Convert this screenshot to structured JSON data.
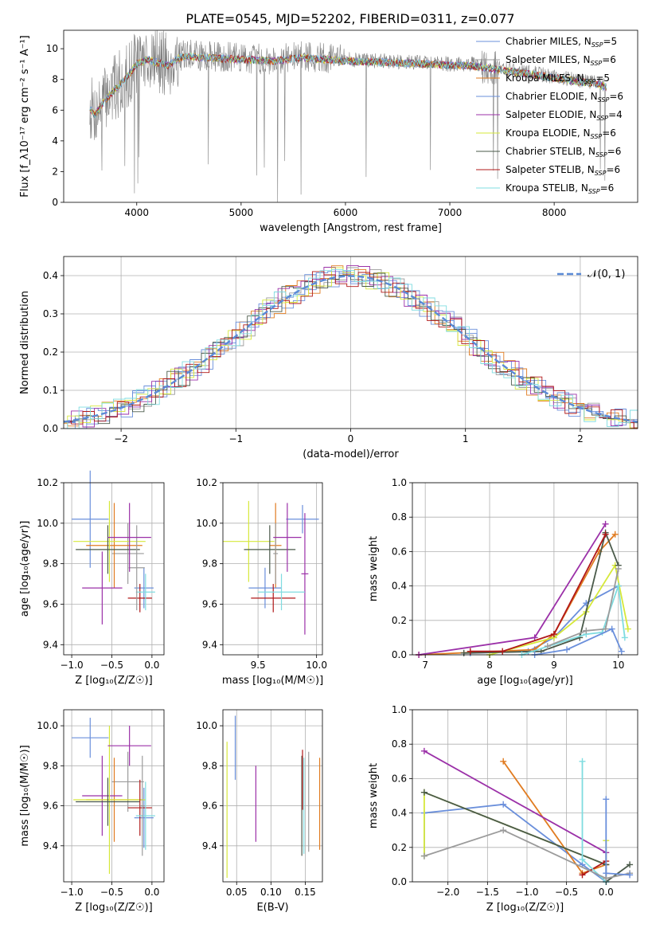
{
  "figure_title": "PLATE=0545, MJD=52202, FIBERID=0311, z=0.077",
  "models": [
    {
      "name": "Chabrier MILES",
      "nssp": "5",
      "color": "#6a8fdb"
    },
    {
      "name": "Salpeter MILES",
      "nssp": "6",
      "color": "#9b9b9b"
    },
    {
      "name": "Kroupa MILES",
      "nssp": "5",
      "color": "#e07b20"
    },
    {
      "name": "Chabrier ELODIE",
      "nssp": "6",
      "color": "#6a8fdb"
    },
    {
      "name": "Salpeter ELODIE",
      "nssp": "4",
      "color": "#9b30a8"
    },
    {
      "name": "Kroupa ELODIE",
      "nssp": "6",
      "color": "#d6e83a"
    },
    {
      "name": "Chabrier STELIB",
      "nssp": "6",
      "color": "#4a5a4a"
    },
    {
      "name": "Salpeter STELIB",
      "nssp": "6",
      "color": "#b01818"
    },
    {
      "name": "Kroupa STELIB",
      "nssp": "6",
      "color": "#7fdce0"
    }
  ],
  "chart_data": [
    {
      "id": "spectrum",
      "type": "line",
      "xlabel": "wavelength [Angstrom, rest frame]",
      "ylabel": "Flux [f_λ10⁻¹⁷ erg cm⁻² s⁻¹ A⁻¹]",
      "xlim": [
        3300,
        8800
      ],
      "ylim": [
        0,
        11.2
      ],
      "xticks": [
        "4000",
        "5000",
        "6000",
        "7000",
        "8000"
      ],
      "xtick_values": [
        4000,
        5000,
        6000,
        7000,
        8000
      ],
      "yticks": [
        "0",
        "2",
        "4",
        "6",
        "8",
        "10"
      ],
      "ytick_values": [
        0,
        2,
        4,
        6,
        8,
        10
      ],
      "continuum": {
        "x": [
          3550,
          3600,
          3700,
          3800,
          3900,
          4000,
          4100,
          4200,
          4300,
          4400,
          4500,
          4700,
          5000,
          5300,
          5600,
          6000,
          6400,
          6800,
          7000,
          7200,
          7400,
          7600,
          7800,
          8000,
          8200,
          8400,
          8500
        ],
        "y": [
          6.2,
          5.8,
          6.8,
          7.5,
          8.2,
          9.1,
          9.4,
          9.2,
          9.0,
          9.5,
          9.6,
          9.5,
          9.4,
          9.3,
          9.5,
          9.3,
          9.2,
          9.1,
          9.0,
          9.0,
          8.8,
          8.6,
          8.4,
          8.2,
          8.0,
          7.8,
          7.6
        ]
      }
    },
    {
      "id": "residuals",
      "type": "bar",
      "xlabel": "(data-model)/error",
      "ylabel": "Normed distribution",
      "xlim": [
        -2.5,
        2.5
      ],
      "ylim": [
        0,
        0.45
      ],
      "xticks": [
        "−2",
        "−1",
        "0",
        "1",
        "2"
      ],
      "xtick_values": [
        -2,
        -1,
        0,
        1,
        2
      ],
      "yticks": [
        "0.0",
        "0.1",
        "0.2",
        "0.3",
        "0.4"
      ],
      "ytick_values": [
        0,
        0.1,
        0.2,
        0.3,
        0.4
      ],
      "legend": "𝒩(0, 1)",
      "legend_color": "#5b8ad6",
      "bin_width": 0.1
    },
    {
      "id": "age-vs-Z",
      "type": "scatter",
      "xlabel": "Z [log₁₀(Z/Z☉)]",
      "ylabel": "age  [log₁₀(age/yr)]",
      "xlim": [
        -1.1,
        0.15
      ],
      "ylim": [
        9.35,
        10.2
      ],
      "xticks": [
        "−1.0",
        "−0.5",
        "0.0"
      ],
      "xtick_values": [
        -1,
        -0.5,
        0
      ],
      "yticks": [
        "9.4",
        "9.6",
        "9.8",
        "10.0",
        "10.2"
      ],
      "ytick_values": [
        9.4,
        9.6,
        9.8,
        10.0,
        10.2
      ],
      "points": [
        {
          "m": 0,
          "x": -0.77,
          "xerr": 0.23,
          "y": 10.02,
          "yerr": 0.24
        },
        {
          "m": 1,
          "x": -0.3,
          "xerr": 0.2,
          "y": 9.85,
          "yerr": 0.15
        },
        {
          "m": 2,
          "x": -0.47,
          "xerr": 0.35,
          "y": 9.89,
          "yerr": 0.21
        },
        {
          "m": 3,
          "x": -0.1,
          "xerr": 0.12,
          "y": 9.68,
          "yerr": 0.1
        },
        {
          "m": 4,
          "x": -0.62,
          "xerr": 0.25,
          "y": 9.68,
          "yerr": 0.18
        },
        {
          "m": 5,
          "x": -0.53,
          "xerr": 0.45,
          "y": 9.91,
          "yerr": 0.2
        },
        {
          "m": 6,
          "x": -0.55,
          "xerr": 0.4,
          "y": 9.87,
          "yerr": 0.12
        },
        {
          "m": 7,
          "x": -0.15,
          "xerr": 0.15,
          "y": 9.63,
          "yerr": 0.07
        },
        {
          "m": 8,
          "x": -0.08,
          "xerr": 0.12,
          "y": 9.66,
          "yerr": 0.09
        },
        {
          "m": 1,
          "x": -0.19,
          "xerr": 0.1,
          "y": 9.78,
          "yerr": 0.21
        },
        {
          "m": 4,
          "x": -0.28,
          "xerr": 0.27,
          "y": 9.93,
          "yerr": 0.17
        }
      ]
    },
    {
      "id": "age-vs-mass",
      "type": "scatter",
      "xlabel": "mass [log₁₀(M/M☉)]",
      "ylabel": "",
      "xlim": [
        9.2,
        10.05
      ],
      "ylim": [
        9.35,
        10.2
      ],
      "xticks": [
        "9.5",
        "10.0"
      ],
      "xtick_values": [
        9.5,
        10.0
      ],
      "yticks": [
        "9.4",
        "9.6",
        "9.8",
        "10.0",
        "10.2"
      ],
      "ytick_values": [
        9.4,
        9.6,
        9.8,
        10.0,
        10.2
      ],
      "points": [
        {
          "m": 0,
          "x": 9.88,
          "xerr": 0.14,
          "y": 10.02,
          "yerr": 0.07
        },
        {
          "m": 2,
          "x": 9.65,
          "xerr": 0.05,
          "y": 9.89,
          "yerr": 0.21
        },
        {
          "m": 3,
          "x": 9.56,
          "xerr": 0.14,
          "y": 9.68,
          "yerr": 0.1
        },
        {
          "m": 4,
          "x": 9.9,
          "xerr": 0.03,
          "y": 9.75,
          "yerr": 0.3
        },
        {
          "m": 5,
          "x": 9.42,
          "xerr": 0.22,
          "y": 9.91,
          "yerr": 0.2
        },
        {
          "m": 6,
          "x": 9.6,
          "xerr": 0.22,
          "y": 9.87,
          "yerr": 0.12
        },
        {
          "m": 7,
          "x": 9.63,
          "xerr": 0.19,
          "y": 9.63,
          "yerr": 0.07
        },
        {
          "m": 8,
          "x": 9.7,
          "xerr": 0.2,
          "y": 9.66,
          "yerr": 0.09
        },
        {
          "m": 1,
          "x": 9.65,
          "xerr": 0.02,
          "y": 9.85,
          "yerr": 0.15
        },
        {
          "m": 4,
          "x": 9.75,
          "xerr": 0.12,
          "y": 9.93,
          "yerr": 0.17
        }
      ]
    },
    {
      "id": "weight-vs-age",
      "type": "line",
      "xlabel": "age  [log₁₀(age/yr)]",
      "ylabel": "mass weight",
      "xlim": [
        6.8,
        10.3
      ],
      "ylim": [
        0,
        1
      ],
      "xticks": [
        "7",
        "8",
        "9",
        "10"
      ],
      "xtick_values": [
        7,
        8,
        9,
        10
      ],
      "yticks": [
        "0.0",
        "0.2",
        "0.4",
        "0.6",
        "0.8",
        "1.0"
      ],
      "ytick_values": [
        0,
        0.2,
        0.4,
        0.6,
        0.8,
        1.0
      ],
      "series": [
        {
          "m": 0,
          "x": [
            7.7,
            8.6,
            9.0,
            9.5,
            10.0
          ],
          "y": [
            0.01,
            0.02,
            0.1,
            0.3,
            0.4
          ]
        },
        {
          "m": 2,
          "x": [
            6.9,
            8.7,
            9.0,
            9.7,
            9.95
          ],
          "y": [
            0.0,
            0.03,
            0.12,
            0.6,
            0.7
          ]
        },
        {
          "m": 4,
          "x": [
            6.9,
            8.7,
            9.8
          ],
          "y": [
            0.0,
            0.1,
            0.76
          ]
        },
        {
          "m": 5,
          "x": [
            8.0,
            9.0,
            9.5,
            9.95,
            10.15
          ],
          "y": [
            0.0,
            0.1,
            0.25,
            0.52,
            0.15
          ]
        },
        {
          "m": 6,
          "x": [
            7.6,
            8.8,
            9.4,
            9.8,
            10.0
          ],
          "y": [
            0.01,
            0.02,
            0.1,
            0.71,
            0.52
          ]
        },
        {
          "m": 7,
          "x": [
            7.7,
            8.2,
            9.0,
            9.8
          ],
          "y": [
            0.02,
            0.02,
            0.12,
            0.7
          ]
        },
        {
          "m": 8,
          "x": [
            8.5,
            9.5,
            9.75,
            10.0,
            10.1
          ],
          "y": [
            0.0,
            0.12,
            0.13,
            0.4,
            0.1
          ]
        },
        {
          "m": 1,
          "x": [
            8.9,
            9.5,
            9.8,
            10.0
          ],
          "y": [
            0.05,
            0.14,
            0.15,
            0.5
          ]
        },
        {
          "m": 3,
          "x": [
            8.7,
            9.2,
            9.9,
            10.05
          ],
          "y": [
            0.0,
            0.03,
            0.15,
            0.02
          ]
        }
      ]
    },
    {
      "id": "mass-vs-Z",
      "type": "scatter",
      "xlabel": "Z [log₁₀(Z/Z☉)]",
      "ylabel": "mass [log₁₀(M/M☉)]",
      "xlim": [
        -1.1,
        0.15
      ],
      "ylim": [
        9.22,
        10.08
      ],
      "xticks": [
        "−1.0",
        "−0.5",
        "0.0"
      ],
      "xtick_values": [
        -1,
        -0.5,
        0
      ],
      "yticks": [
        "9.4",
        "9.6",
        "9.8",
        "10.0"
      ],
      "ytick_values": [
        9.4,
        9.6,
        9.8,
        10.0
      ],
      "points": [
        {
          "m": 0,
          "x": -0.77,
          "xerr": 0.23,
          "y": 9.94,
          "yerr": 0.1
        },
        {
          "m": 1,
          "x": -0.3,
          "xerr": 0.2,
          "y": 9.72,
          "yerr": 0.15
        },
        {
          "m": 2,
          "x": -0.47,
          "xerr": 0.35,
          "y": 9.63,
          "yerr": 0.21
        },
        {
          "m": 3,
          "x": -0.1,
          "xerr": 0.12,
          "y": 9.54,
          "yerr": 0.15
        },
        {
          "m": 4,
          "x": -0.62,
          "xerr": 0.25,
          "y": 9.65,
          "yerr": 0.2
        },
        {
          "m": 5,
          "x": -0.53,
          "xerr": 0.45,
          "y": 9.63,
          "yerr": 0.37
        },
        {
          "m": 6,
          "x": -0.55,
          "xerr": 0.4,
          "y": 9.62,
          "yerr": 0.12
        },
        {
          "m": 7,
          "x": -0.15,
          "xerr": 0.15,
          "y": 9.59,
          "yerr": 0.14
        },
        {
          "m": 8,
          "x": -0.08,
          "xerr": 0.12,
          "y": 9.55,
          "yerr": 0.17
        },
        {
          "m": 1,
          "x": -0.12,
          "xerr": 0.03,
          "y": 9.6,
          "yerr": 0.25
        },
        {
          "m": 4,
          "x": -0.28,
          "xerr": 0.27,
          "y": 9.9,
          "yerr": 0.1
        }
      ]
    },
    {
      "id": "mass-vs-EBV",
      "type": "scatter",
      "xlabel": "E(B-V)",
      "ylabel": "",
      "xlim": [
        0.03,
        0.175
      ],
      "ylim": [
        9.22,
        10.08
      ],
      "xticks": [
        "0.05",
        "0.10",
        "0.15"
      ],
      "xtick_values": [
        0.05,
        0.1,
        0.15
      ],
      "yticks": [
        "9.4",
        "9.6",
        "9.8",
        "10.0"
      ],
      "ytick_values": [
        9.4,
        9.6,
        9.8,
        10.0
      ],
      "points": [
        {
          "m": 0,
          "x": 0.048,
          "xerr": 0,
          "y": 9.89,
          "yerr": 0.16
        },
        {
          "m": 5,
          "x": 0.036,
          "xerr": 0,
          "y": 9.58,
          "yerr": 0.34
        },
        {
          "m": 4,
          "x": 0.078,
          "xerr": 0,
          "y": 9.61,
          "yerr": 0.19
        },
        {
          "m": 6,
          "x": 0.145,
          "xerr": 0,
          "y": 9.6,
          "yerr": 0.25
        },
        {
          "m": 7,
          "x": 0.146,
          "xerr": 0,
          "y": 9.73,
          "yerr": 0.15
        },
        {
          "m": 8,
          "x": 0.148,
          "xerr": 0,
          "y": 9.6,
          "yerr": 0.24
        },
        {
          "m": 1,
          "x": 0.155,
          "xerr": 0,
          "y": 9.62,
          "yerr": 0.25
        },
        {
          "m": 2,
          "x": 0.171,
          "xerr": 0,
          "y": 9.61,
          "yerr": 0.23
        }
      ]
    },
    {
      "id": "weight-vs-Z",
      "type": "line",
      "xlabel": "Z [log₁₀(Z/Z☉)]",
      "ylabel": "mass weight",
      "xlim": [
        -2.45,
        0.4
      ],
      "ylim": [
        0,
        1
      ],
      "xticks": [
        "−2.0",
        "−1.5",
        "−1.0",
        "−0.5",
        "0.0"
      ],
      "xtick_values": [
        -2,
        -1.5,
        -1,
        -0.5,
        0
      ],
      "yticks": [
        "0.0",
        "0.2",
        "0.4",
        "0.6",
        "0.8",
        "1.0"
      ],
      "ytick_values": [
        0,
        0.2,
        0.4,
        0.6,
        0.8,
        1.0
      ],
      "series": [
        {
          "m": 0,
          "x": [
            -2.3,
            -2.3,
            -1.3,
            -0.3,
            0.0
          ],
          "y": [
            0.15,
            0.4,
            0.45,
            0.1,
            0.0
          ]
        },
        {
          "m": 2,
          "x": [
            -1.3,
            -0.3,
            0.0
          ],
          "y": [
            0.7,
            0.05,
            0.1
          ]
        },
        {
          "m": 4,
          "x": [
            -2.3,
            0.0,
            0.0
          ],
          "y": [
            0.76,
            0.17,
            0.1
          ]
        },
        {
          "m": 5,
          "x": [
            -2.3,
            -2.3,
            0.0,
            0.0
          ],
          "y": [
            0.15,
            0.52,
            0.1,
            0.24
          ]
        },
        {
          "m": 6,
          "x": [
            -2.3,
            0.0,
            0.0,
            0.3
          ],
          "y": [
            0.52,
            0.1,
            0.0,
            0.1
          ]
        },
        {
          "m": 7,
          "x": [
            -0.3,
            0.0
          ],
          "y": [
            0.04,
            0.12
          ]
        },
        {
          "m": 8,
          "x": [
            -0.3,
            -0.3,
            0.0
          ],
          "y": [
            0.7,
            0.13,
            0.0
          ]
        },
        {
          "m": 1,
          "x": [
            -2.3,
            -1.3,
            0.0,
            0.3
          ],
          "y": [
            0.15,
            0.3,
            0.02,
            0.05
          ]
        },
        {
          "m": 3,
          "x": [
            0.0,
            0.0,
            0.3
          ],
          "y": [
            0.48,
            0.05,
            0.04
          ]
        }
      ]
    }
  ]
}
